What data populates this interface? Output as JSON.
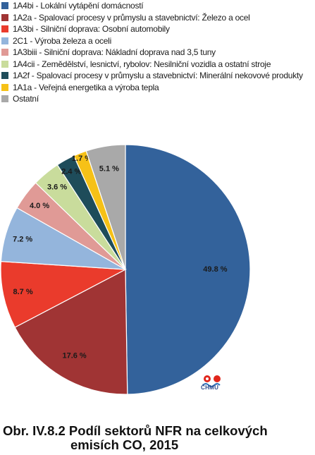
{
  "chart_data": {
    "type": "pie",
    "title_line1": "Obr. IV.8.2  Podíl sektorů NFR na celkových",
    "title_line2": "emisích CO, 2015",
    "legend_position": "top",
    "slices": [
      {
        "name": "1A4bi - Lokální vytápění domácností",
        "value": 49.8,
        "label": "49.8 %",
        "color": "#33629b"
      },
      {
        "name": "1A2a - Spalovací procesy v průmyslu a stavebnictví: Železo a ocel",
        "value": 17.6,
        "label": "17.6 %",
        "color": "#a03434"
      },
      {
        "name": "1A3bi - Silniční doprava: Osobní automobily",
        "value": 8.7,
        "label": "8.7 %",
        "color": "#ea3b2c"
      },
      {
        "name": "2C1 - Výroba železa a oceli",
        "value": 7.2,
        "label": "7.2 %",
        "color": "#94b5dc"
      },
      {
        "name": "1A3biii - Silniční doprava: Nákladní doprava nad 3,5 tuny",
        "value": 4.0,
        "label": "4.0 %",
        "color": "#e09a96"
      },
      {
        "name": "1A4cii - Zemědělství, lesnictví, rybolov: Nesilniční vozidla a ostatní stroje",
        "value": 3.6,
        "label": "3.6 %",
        "color": "#c9dc9c"
      },
      {
        "name": "1A2f - Spalovací procesy v průmyslu a stavebnictví: Minerální nekovové produkty",
        "value": 2.4,
        "label": "2.4 %",
        "color": "#1e4c5a"
      },
      {
        "name": "1A1a - Veřejná energetika a výroba tepla",
        "value": 1.7,
        "label": "1.7 %",
        "color": "#f6c117"
      },
      {
        "name": "Ostatní",
        "value": 5.1,
        "label": "5.1 %",
        "color": "#a9a9a9"
      }
    ]
  },
  "logo": {
    "text": "ČHMÚ"
  }
}
